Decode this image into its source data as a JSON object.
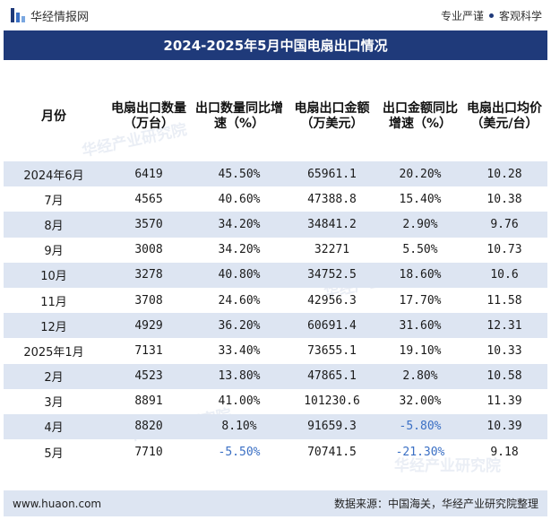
{
  "header": {
    "brand": "华经情报网",
    "tagline_left": "专业严谨",
    "tagline_right": "客观科学"
  },
  "title": "2024-2025年5月中国电扇出口情况",
  "table": {
    "columns": [
      "月份",
      "电扇出口数量（万台）",
      "出口数量同比增速（%）",
      "电扇出口金额（万美元）",
      "出口金额同比增速（%）",
      "电扇出口均价（美元/台）"
    ],
    "rows": [
      {
        "month": "2024年6月",
        "qty": "6419",
        "qty_yoy": "45.50%",
        "amount": "65961.1",
        "amount_yoy": "20.20%",
        "price": "10.28"
      },
      {
        "month": "7月",
        "qty": "4565",
        "qty_yoy": "40.60%",
        "amount": "47388.8",
        "amount_yoy": "15.40%",
        "price": "10.38"
      },
      {
        "month": "8月",
        "qty": "3570",
        "qty_yoy": "34.20%",
        "amount": "34841.2",
        "amount_yoy": "2.90%",
        "price": "9.76"
      },
      {
        "month": "9月",
        "qty": "3008",
        "qty_yoy": "34.20%",
        "amount": "32271",
        "amount_yoy": "5.50%",
        "price": "10.73"
      },
      {
        "month": "10月",
        "qty": "3278",
        "qty_yoy": "40.80%",
        "amount": "34752.5",
        "amount_yoy": "18.60%",
        "price": "10.6"
      },
      {
        "month": "11月",
        "qty": "3708",
        "qty_yoy": "24.60%",
        "amount": "42956.3",
        "amount_yoy": "17.70%",
        "price": "11.58"
      },
      {
        "month": "12月",
        "qty": "4929",
        "qty_yoy": "36.20%",
        "amount": "60691.4",
        "amount_yoy": "31.60%",
        "price": "12.31"
      },
      {
        "month": "2025年1月",
        "qty": "7131",
        "qty_yoy": "33.40%",
        "amount": "73655.1",
        "amount_yoy": "19.10%",
        "price": "10.33"
      },
      {
        "month": "2月",
        "qty": "4523",
        "qty_yoy": "13.80%",
        "amount": "47865.1",
        "amount_yoy": "2.80%",
        "price": "10.58"
      },
      {
        "month": "3月",
        "qty": "8891",
        "qty_yoy": "41.00%",
        "amount": "101230.6",
        "amount_yoy": "32.00%",
        "price": "11.39"
      },
      {
        "month": "4月",
        "qty": "8820",
        "qty_yoy": "8.10%",
        "amount": "91659.3",
        "amount_yoy": "-5.80%",
        "price": "10.39"
      },
      {
        "month": "5月",
        "qty": "7710",
        "qty_yoy": "-5.50%",
        "amount": "70741.5",
        "amount_yoy": "-21.30%",
        "price": "9.18"
      }
    ]
  },
  "footer": {
    "website": "www.huaon.com",
    "source": "数据来源：中国海关，华经产业研究院整理"
  },
  "watermark": "华经产业研究院",
  "colors": {
    "header_bg": "#1f3a7a",
    "stripe": "#dde5f2",
    "negative": "#3a6fc4"
  }
}
